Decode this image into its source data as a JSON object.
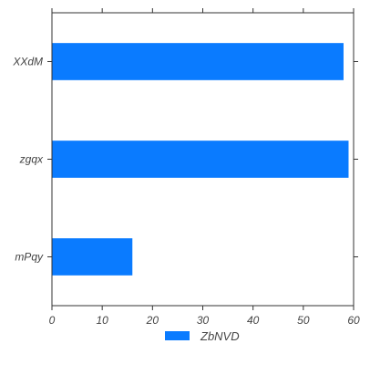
{
  "chart_data": {
    "type": "bar",
    "orientation": "horizontal",
    "categories": [
      "XXdM",
      "zgqx",
      "mPqy"
    ],
    "series": [
      {
        "name": "ZbNVD",
        "values": [
          58,
          59,
          16
        ]
      }
    ],
    "xlim": [
      0,
      60
    ],
    "xticks": [
      "0",
      "10",
      "20",
      "30",
      "40",
      "50",
      "60"
    ],
    "title": "",
    "xlabel": "",
    "ylabel": "",
    "grid": false,
    "legend_position": "bottom-center",
    "colors": {
      "bar": "#0a7bff",
      "axis": "#333333"
    }
  }
}
